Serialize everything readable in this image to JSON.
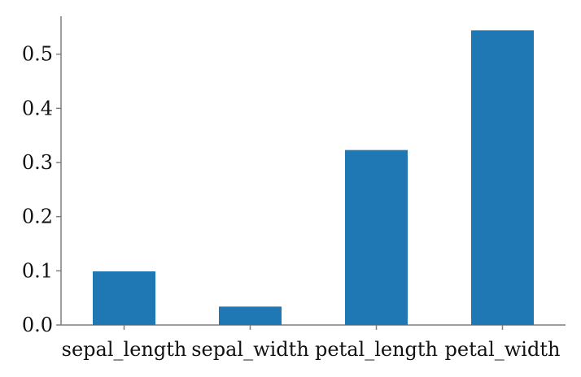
{
  "chart_data": {
    "type": "bar",
    "categories": [
      "sepal_length",
      "sepal_width",
      "petal_length",
      "petal_width"
    ],
    "values": [
      0.099,
      0.034,
      0.323,
      0.544
    ],
    "yticks": [
      "0.0",
      "0.1",
      "0.2",
      "0.3",
      "0.4",
      "0.5"
    ],
    "ylim": [
      0.0,
      0.57
    ],
    "title": "",
    "xlabel": "",
    "ylabel": "",
    "grid": false,
    "bar_color": "#1f77b4",
    "axis_color": "#7f7f7f"
  }
}
